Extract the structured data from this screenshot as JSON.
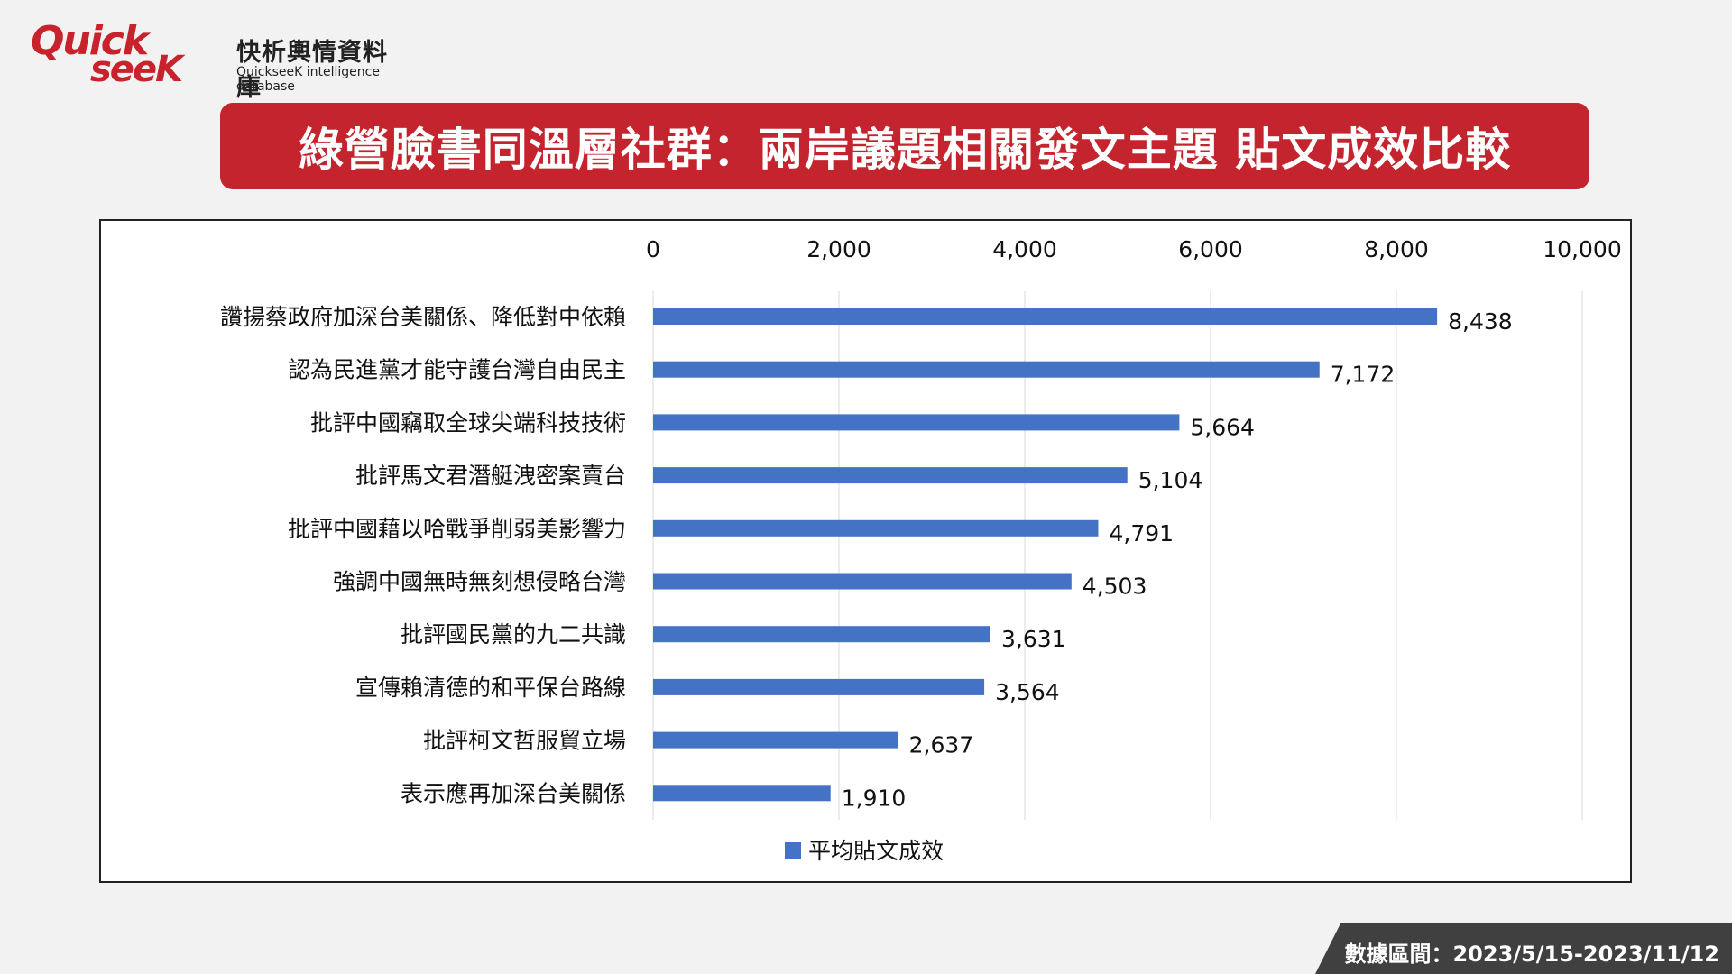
{
  "brand": {
    "logo_quick": "Quick",
    "logo_seek": "seeK",
    "name_cn": "快析輿情資料庫",
    "name_en": "QuickseeK intelligence database",
    "color": "#c8232c"
  },
  "title": "綠營臉書同溫層社群：兩岸議題相關發文主題  貼文成效比較",
  "footer": {
    "date_range": "數據區間：2023/5/15-2023/11/12"
  },
  "colors": {
    "bar": "#4472c4",
    "title_bg": "#c4242d",
    "footer_bg": "#404040"
  },
  "chart_data": {
    "type": "bar",
    "orientation": "horizontal",
    "categories": [
      "讚揚蔡政府加深台美關係、降低對中依賴",
      "認為民進黨才能守護台灣自由民主",
      "批評中國竊取全球尖端科技技術",
      "批評馬文君潛艇洩密案賣台",
      "批評中國藉以哈戰爭削弱美影響力",
      "強調中國無時無刻想侵略台灣",
      "批評國民黨的九二共識",
      "宣傳賴清德的和平保台路線",
      "批評柯文哲服貿立場",
      "表示應再加深台美關係"
    ],
    "series": [
      {
        "name": "平均貼文成效",
        "values": [
          8438,
          7172,
          5664,
          5104,
          4791,
          4503,
          3631,
          3564,
          2637,
          1910
        ],
        "labels": [
          "8,438",
          "7,172",
          "5,664",
          "5,104",
          "4,791",
          "4,503",
          "3,631",
          "3,564",
          "2,637",
          "1,910"
        ]
      }
    ],
    "xlim": [
      0,
      10000
    ],
    "ticks": [
      0,
      2000,
      4000,
      6000,
      8000,
      10000
    ],
    "tick_labels": [
      "0",
      "2,000",
      "4,000",
      "6,000",
      "8,000",
      "10,000"
    ],
    "axis_position": "top",
    "grid": true,
    "legend": "bottom"
  }
}
